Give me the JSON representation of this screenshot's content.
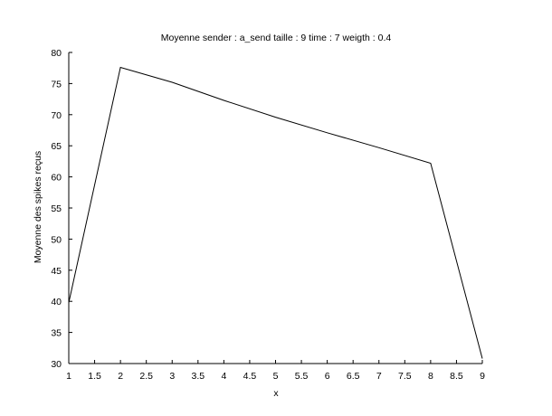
{
  "chart_data": {
    "type": "line",
    "title": "Moyenne sender : a_send taille : 9 time : 7 weigth : 0.4",
    "xlabel": "x",
    "ylabel": "Moyenne des spikes reçus",
    "xlim": [
      1,
      9
    ],
    "ylim": [
      30,
      80
    ],
    "x_ticks": [
      "1",
      "1.5",
      "2",
      "2.5",
      "3",
      "3.5",
      "4",
      "4.5",
      "5",
      "5.5",
      "6",
      "6.5",
      "7",
      "7.5",
      "8",
      "8.5",
      "9"
    ],
    "y_ticks": [
      "30",
      "35",
      "40",
      "45",
      "50",
      "55",
      "60",
      "65",
      "70",
      "75",
      "80"
    ],
    "grid": false,
    "legend": "none",
    "line_color": "#000000",
    "series": [
      {
        "x": [
          1,
          2,
          3,
          4,
          5,
          6,
          7,
          8,
          9
        ],
        "values": [
          39.8,
          77.6,
          75.2,
          72.3,
          69.6,
          67.1,
          64.7,
          62.2,
          30.8
        ]
      }
    ]
  }
}
